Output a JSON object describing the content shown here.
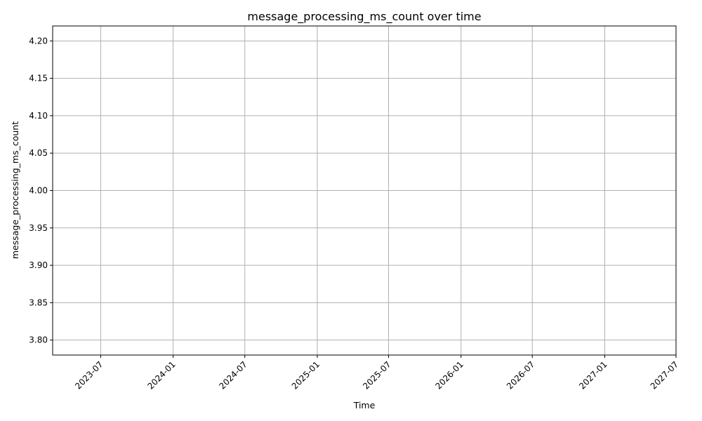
{
  "chart_data": {
    "type": "line",
    "title": "message_processing_ms_count over time",
    "xlabel": "Time",
    "ylabel": "message_processing_ms_count",
    "x_ticks": [
      "2023-07",
      "2024-01",
      "2024-07",
      "2025-01",
      "2025-07",
      "2026-01",
      "2026-07",
      "2027-01",
      "2027-07"
    ],
    "y_ticks": [
      "3.80",
      "3.85",
      "3.90",
      "3.95",
      "4.00",
      "4.05",
      "4.10",
      "4.15",
      "4.20"
    ],
    "xlim": [
      "2023-03-01",
      "2027-07-01"
    ],
    "ylim": [
      3.78,
      4.22
    ],
    "grid": true,
    "series": [
      {
        "x": [],
        "y": []
      }
    ],
    "colors": {
      "line": "#1f77b4",
      "grid": "#b0b0b0"
    }
  }
}
